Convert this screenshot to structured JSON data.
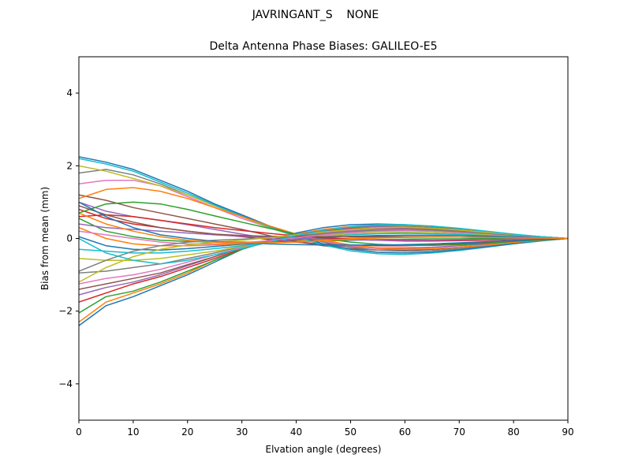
{
  "figure": {
    "suptitle": "JAVRINGANT_S    NONE"
  },
  "chart_data": {
    "type": "line",
    "title": "Delta Antenna Phase Biases: GALILEO-E5",
    "xlabel": "Elvation angle (degrees)",
    "ylabel": "Bias from mean (mm)",
    "xlim": [
      0,
      90
    ],
    "ylim": [
      -5,
      5
    ],
    "xticks": [
      0,
      10,
      20,
      30,
      40,
      50,
      60,
      70,
      80,
      90
    ],
    "yticks": [
      -4,
      -2,
      0,
      2,
      4
    ],
    "grid": false,
    "x": [
      0,
      5,
      10,
      15,
      20,
      25,
      30,
      35,
      40,
      45,
      50,
      55,
      60,
      65,
      70,
      75,
      80,
      85,
      90
    ],
    "colors": [
      "#1f77b4",
      "#ff7f0e",
      "#2ca02c",
      "#d62728",
      "#9467bd",
      "#8c564b",
      "#e377c2",
      "#7f7f7f",
      "#bcbd22",
      "#17becf"
    ],
    "series": [
      {
        "values": [
          -2.4,
          -1.85,
          -1.6,
          -1.3,
          -1.0,
          -0.65,
          -0.3,
          -0.05,
          0.15,
          0.3,
          0.38,
          0.4,
          0.38,
          0.33,
          0.26,
          0.18,
          0.11,
          0.05,
          0.0
        ]
      },
      {
        "values": [
          -2.3,
          -1.75,
          -1.5,
          -1.25,
          -0.95,
          -0.6,
          -0.3,
          -0.05,
          0.12,
          0.25,
          0.33,
          0.37,
          0.35,
          0.3,
          0.24,
          0.17,
          0.1,
          0.05,
          0.0
        ]
      },
      {
        "values": [
          -2.05,
          -1.6,
          -1.45,
          -1.2,
          -0.9,
          -0.6,
          -0.3,
          -0.08,
          0.1,
          0.22,
          0.3,
          0.34,
          0.33,
          0.29,
          0.23,
          0.16,
          0.1,
          0.05,
          0.0
        ]
      },
      {
        "values": [
          -1.75,
          -1.5,
          -1.25,
          -1.05,
          -0.8,
          -0.55,
          -0.28,
          -0.08,
          0.08,
          0.2,
          0.27,
          0.3,
          0.3,
          0.26,
          0.21,
          0.15,
          0.09,
          0.04,
          0.0
        ]
      },
      {
        "values": [
          -1.55,
          -1.35,
          -1.2,
          -1.0,
          -0.75,
          -0.5,
          -0.25,
          -0.05,
          0.1,
          0.22,
          0.3,
          0.33,
          0.32,
          0.28,
          0.22,
          0.16,
          0.1,
          0.05,
          0.0
        ]
      },
      {
        "values": [
          -1.4,
          -1.25,
          -1.1,
          -0.95,
          -0.72,
          -0.5,
          -0.25,
          -0.06,
          0.08,
          0.18,
          0.25,
          0.28,
          0.28,
          0.25,
          0.2,
          0.14,
          0.09,
          0.04,
          0.0
        ]
      },
      {
        "values": [
          -1.25,
          -1.1,
          -1.0,
          -0.85,
          -0.65,
          -0.45,
          -0.25,
          -0.08,
          0.05,
          0.15,
          0.22,
          0.26,
          0.26,
          0.23,
          0.18,
          0.13,
          0.08,
          0.04,
          0.0
        ]
      },
      {
        "values": [
          -0.95,
          -0.9,
          -0.8,
          -0.7,
          -0.55,
          -0.4,
          -0.22,
          -0.08,
          0.04,
          0.12,
          0.18,
          0.22,
          0.22,
          0.2,
          0.16,
          0.12,
          0.07,
          0.03,
          0.0
        ]
      },
      {
        "values": [
          -0.55,
          -0.6,
          -0.6,
          -0.55,
          -0.45,
          -0.35,
          -0.22,
          -0.1,
          0.0,
          0.08,
          0.13,
          0.16,
          0.17,
          0.16,
          0.13,
          0.1,
          0.06,
          0.03,
          0.0
        ]
      },
      {
        "values": [
          -0.3,
          -0.35,
          -0.4,
          -0.4,
          -0.35,
          -0.28,
          -0.2,
          -0.1,
          -0.02,
          0.05,
          0.1,
          0.13,
          0.14,
          0.13,
          0.11,
          0.08,
          0.05,
          0.02,
          0.0
        ]
      },
      {
        "values": [
          0.05,
          -0.2,
          -0.3,
          -0.32,
          -0.28,
          -0.22,
          -0.16,
          -0.1,
          -0.04,
          0.02,
          0.06,
          0.08,
          0.09,
          0.09,
          0.08,
          0.06,
          0.04,
          0.02,
          0.0
        ]
      },
      {
        "values": [
          0.3,
          0.0,
          -0.15,
          -0.2,
          -0.2,
          -0.18,
          -0.14,
          -0.1,
          -0.06,
          -0.02,
          0.01,
          0.03,
          0.04,
          0.05,
          0.04,
          0.03,
          0.02,
          0.01,
          0.0
        ]
      },
      {
        "values": [
          0.55,
          0.2,
          0.05,
          -0.05,
          -0.08,
          -0.1,
          -0.1,
          -0.1,
          -0.09,
          -0.07,
          -0.05,
          -0.03,
          -0.02,
          -0.01,
          -0.01,
          0.0,
          0.0,
          0.0,
          0.0
        ]
      },
      {
        "values": [
          0.8,
          0.55,
          0.4,
          0.3,
          0.2,
          0.12,
          0.05,
          -0.03,
          -0.1,
          -0.15,
          -0.18,
          -0.2,
          -0.2,
          -0.18,
          -0.15,
          -0.11,
          -0.07,
          -0.03,
          0.0
        ]
      },
      {
        "values": [
          1.0,
          0.75,
          0.6,
          0.5,
          0.38,
          0.25,
          0.12,
          0.0,
          -0.1,
          -0.18,
          -0.23,
          -0.26,
          -0.26,
          -0.24,
          -0.2,
          -0.15,
          -0.09,
          -0.04,
          0.0
        ]
      },
      {
        "values": [
          1.2,
          1.05,
          0.85,
          0.7,
          0.55,
          0.4,
          0.25,
          0.08,
          -0.08,
          -0.2,
          -0.28,
          -0.32,
          -0.32,
          -0.3,
          -0.25,
          -0.18,
          -0.11,
          -0.05,
          0.0
        ]
      },
      {
        "values": [
          1.5,
          1.6,
          1.6,
          1.45,
          1.15,
          0.85,
          0.55,
          0.3,
          0.1,
          -0.08,
          -0.2,
          -0.28,
          -0.3,
          -0.28,
          -0.24,
          -0.18,
          -0.11,
          -0.05,
          0.0
        ]
      },
      {
        "values": [
          1.8,
          1.9,
          1.75,
          1.5,
          1.2,
          0.9,
          0.6,
          0.32,
          0.1,
          -0.1,
          -0.24,
          -0.32,
          -0.35,
          -0.33,
          -0.28,
          -0.21,
          -0.13,
          -0.06,
          0.0
        ]
      },
      {
        "values": [
          2.0,
          1.85,
          1.65,
          1.45,
          1.2,
          0.9,
          0.6,
          0.3,
          0.05,
          -0.15,
          -0.3,
          -0.38,
          -0.4,
          -0.37,
          -0.31,
          -0.23,
          -0.14,
          -0.06,
          0.0
        ]
      },
      {
        "values": [
          2.2,
          2.05,
          1.85,
          1.55,
          1.25,
          0.92,
          0.62,
          0.32,
          0.05,
          -0.18,
          -0.34,
          -0.42,
          -0.44,
          -0.4,
          -0.33,
          -0.24,
          -0.15,
          -0.07,
          0.0
        ]
      },
      {
        "values": [
          2.25,
          2.1,
          1.9,
          1.6,
          1.3,
          0.95,
          0.65,
          0.35,
          0.08,
          -0.15,
          -0.3,
          -0.38,
          -0.4,
          -0.37,
          -0.31,
          -0.23,
          -0.14,
          -0.06,
          0.0
        ]
      },
      {
        "values": [
          1.1,
          1.35,
          1.4,
          1.3,
          1.1,
          0.85,
          0.6,
          0.35,
          0.12,
          -0.05,
          -0.18,
          -0.26,
          -0.29,
          -0.28,
          -0.24,
          -0.18,
          -0.11,
          -0.05,
          0.0
        ]
      },
      {
        "values": [
          0.7,
          0.95,
          1.0,
          0.95,
          0.8,
          0.62,
          0.45,
          0.28,
          0.12,
          0.0,
          -0.1,
          -0.16,
          -0.19,
          -0.19,
          -0.17,
          -0.13,
          -0.08,
          -0.04,
          0.0
        ]
      },
      {
        "values": [
          0.6,
          0.65,
          0.6,
          0.5,
          0.4,
          0.3,
          0.22,
          0.14,
          0.07,
          0.02,
          -0.02,
          -0.05,
          -0.07,
          -0.07,
          -0.06,
          -0.05,
          -0.03,
          -0.01,
          0.0
        ]
      },
      {
        "values": [
          0.4,
          0.3,
          0.25,
          0.2,
          0.15,
          0.1,
          0.06,
          0.03,
          0.0,
          -0.02,
          -0.04,
          -0.05,
          -0.05,
          -0.05,
          -0.04,
          -0.03,
          -0.02,
          -0.01,
          0.0
        ]
      },
      {
        "values": [
          0.9,
          0.65,
          0.45,
          0.3,
          0.2,
          0.12,
          0.08,
          0.06,
          0.05,
          0.05,
          0.05,
          0.05,
          0.05,
          0.05,
          0.04,
          0.03,
          0.02,
          0.01,
          0.0
        ]
      },
      {
        "values": [
          0.2,
          0.1,
          0.0,
          -0.1,
          -0.15,
          -0.15,
          -0.12,
          -0.06,
          0.02,
          0.1,
          0.16,
          0.2,
          0.21,
          0.2,
          0.17,
          0.13,
          0.08,
          0.04,
          0.0
        ]
      },
      {
        "values": [
          -0.9,
          -0.6,
          -0.35,
          -0.2,
          -0.1,
          -0.05,
          -0.02,
          0.02,
          0.08,
          0.14,
          0.2,
          0.24,
          0.25,
          0.23,
          0.19,
          0.14,
          0.09,
          0.04,
          0.0
        ]
      },
      {
        "values": [
          -1.2,
          -0.8,
          -0.5,
          -0.3,
          -0.18,
          -0.1,
          -0.05,
          0.02,
          0.1,
          0.18,
          0.25,
          0.3,
          0.31,
          0.28,
          0.23,
          0.17,
          0.11,
          0.05,
          0.0
        ]
      },
      {
        "values": [
          0.0,
          -0.4,
          -0.6,
          -0.7,
          -0.6,
          -0.45,
          -0.28,
          -0.1,
          0.08,
          0.22,
          0.32,
          0.38,
          0.38,
          0.34,
          0.28,
          0.2,
          0.12,
          0.05,
          0.0
        ]
      },
      {
        "values": [
          1.0,
          0.6,
          0.3,
          0.1,
          0.0,
          -0.08,
          -0.12,
          -0.15,
          -0.17,
          -0.18,
          -0.18,
          -0.18,
          -0.17,
          -0.15,
          -0.12,
          -0.09,
          -0.06,
          -0.03,
          0.0
        ]
      },
      {
        "values": [
          0.7,
          0.4,
          0.2,
          0.05,
          -0.05,
          -0.1,
          -0.12,
          -0.12,
          -0.1,
          -0.06,
          -0.02,
          0.01,
          0.03,
          0.04,
          0.04,
          0.03,
          0.02,
          0.01,
          0.0
        ]
      }
    ]
  }
}
